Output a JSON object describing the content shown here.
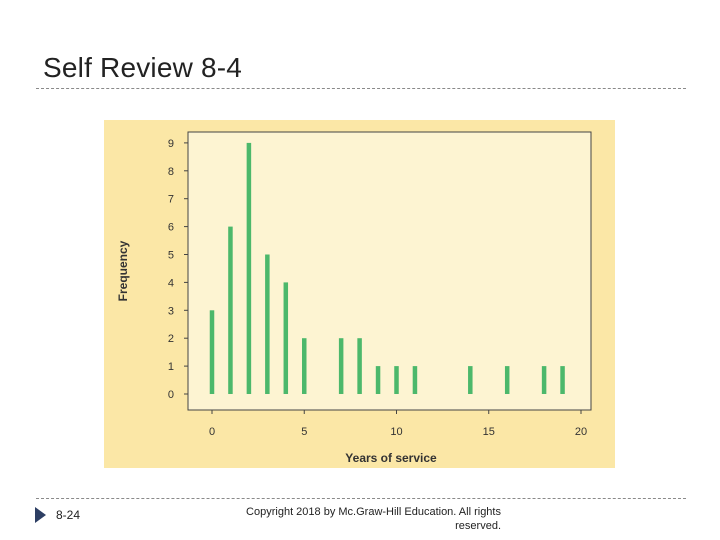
{
  "slide": {
    "title": "Self Review 8-4",
    "slide_number": "8-24",
    "copyright": "Copyright  2018 by Mc.Graw-Hill Education.  All rights reserved."
  },
  "colors": {
    "panel_bg": "#fbe7a6",
    "plot_bg": "#fdf4d2",
    "bar": "#4cb86b",
    "axis": "#444444",
    "accent_arrow": "#2d3e63"
  },
  "chart_data": {
    "type": "bar",
    "xlabel": "Years of service",
    "ylabel": "Frequency",
    "x": [
      0,
      1,
      2,
      3,
      4,
      5,
      7,
      8,
      9,
      10,
      11,
      14,
      16,
      18,
      19
    ],
    "values": [
      3,
      6,
      9,
      5,
      4,
      2,
      2,
      2,
      1,
      1,
      1,
      1,
      1,
      1,
      1
    ],
    "xlim": [
      0,
      20
    ],
    "ylim": [
      0,
      9
    ],
    "xticks": [
      0,
      5,
      10,
      15,
      20
    ],
    "yticks": [
      0,
      1,
      2,
      3,
      4,
      5,
      6,
      7,
      8,
      9
    ],
    "grid": false
  }
}
